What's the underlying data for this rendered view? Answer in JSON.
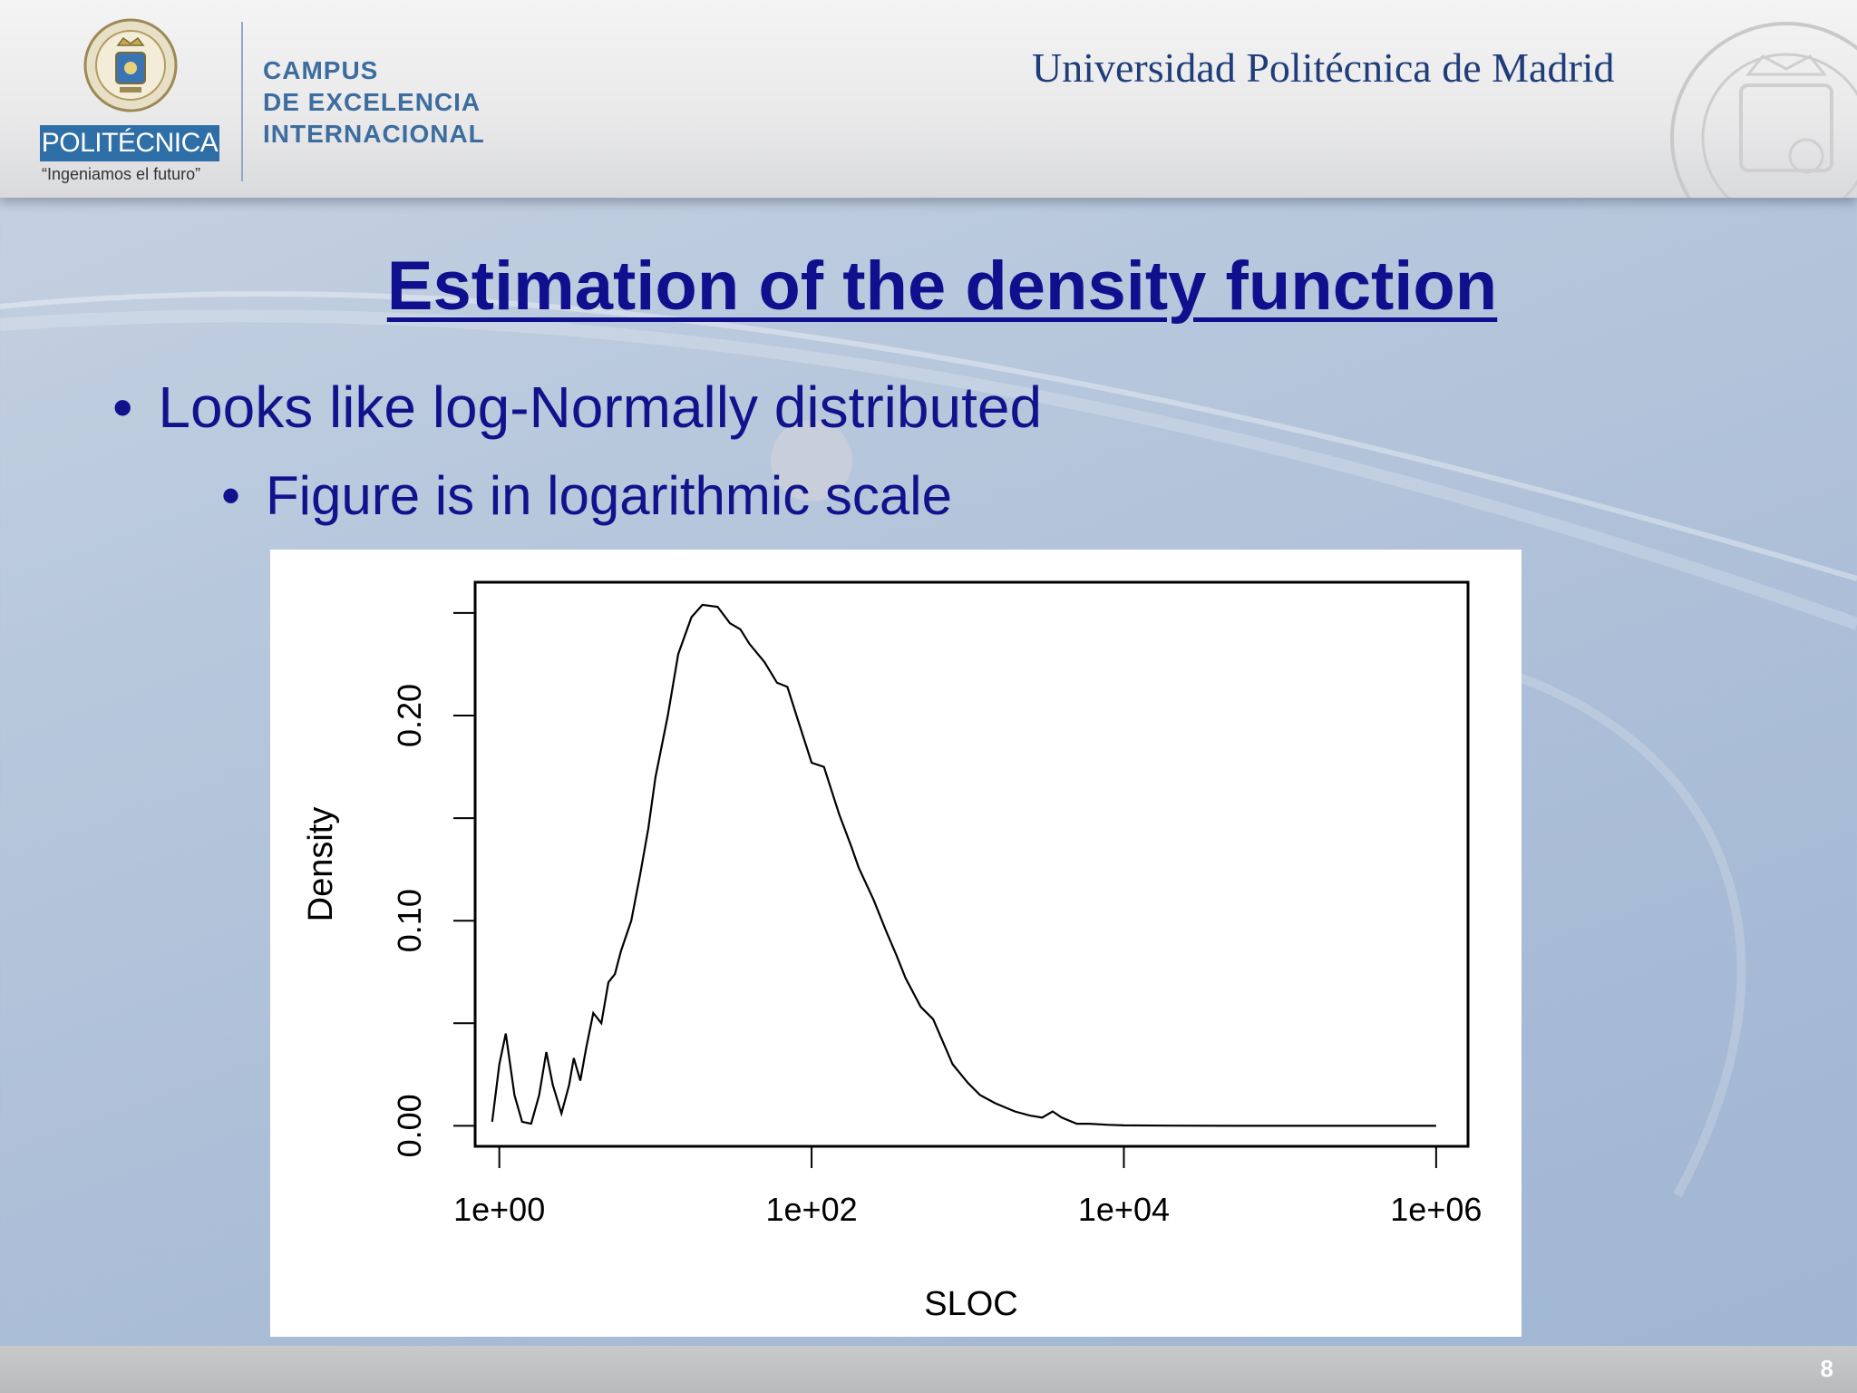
{
  "header": {
    "logo_text": "POLITÉCNICA",
    "logo_tagline": "“Ingeniamos el futuro”",
    "campus_lines": [
      "CAMPUS",
      "DE EXCELENCIA",
      "INTERNACIONAL"
    ],
    "university_name": "Universidad Politécnica de Madrid"
  },
  "slide": {
    "title": "Estimation of the density function",
    "bullet_1": "Looks like log-Normally distributed",
    "bullet_2": "Figure is in logarithmic scale",
    "page_number": "8"
  },
  "colors": {
    "title": "#10108f",
    "bullet": "#12128c",
    "logo_box": "#2f6fa8",
    "campus_text": "#3d6d9f"
  },
  "chart_data": {
    "type": "line",
    "xlabel": "SLOC",
    "ylabel": "Density",
    "x_scale": "log10",
    "xlim": [
      0.7,
      1600000
    ],
    "ylim": [
      -0.01,
      0.265
    ],
    "x_ticks": [
      1,
      100,
      10000,
      1000000
    ],
    "x_tick_labels": [
      "1e+00",
      "1e+02",
      "1e+04",
      "1e+06"
    ],
    "y_ticks": [
      0,
      0.05,
      0.1,
      0.15,
      0.2,
      0.25
    ],
    "y_tick_labels": [
      "0.00",
      "",
      "0.10",
      "",
      "0.20",
      ""
    ],
    "grid": false,
    "legend": "none",
    "series": [
      {
        "x": [
          0.9,
          1.0,
          1.1,
          1.25,
          1.4,
          1.6,
          1.8,
          2.0,
          2.2,
          2.5,
          2.8,
          3.0,
          3.3,
          3.6,
          4.0,
          4.5,
          5.0,
          5.5,
          6.0,
          7.0,
          8.0,
          9.0,
          10,
          12,
          14,
          17,
          20,
          25,
          30,
          35,
          40,
          50,
          60,
          70,
          80,
          100,
          120,
          150,
          180,
          200,
          250,
          300,
          350,
          400,
          500,
          600,
          800,
          1000,
          1200,
          1500,
          2000,
          2500,
          3000,
          3500,
          4000,
          5000,
          6000,
          8000,
          10000,
          20000,
          50000,
          100000,
          1000000
        ],
        "y": [
          0.002,
          0.03,
          0.045,
          0.015,
          0.002,
          0.001,
          0.015,
          0.036,
          0.02,
          0.006,
          0.02,
          0.033,
          0.022,
          0.038,
          0.055,
          0.05,
          0.07,
          0.074,
          0.085,
          0.1,
          0.123,
          0.145,
          0.17,
          0.2,
          0.23,
          0.248,
          0.254,
          0.253,
          0.245,
          0.242,
          0.235,
          0.226,
          0.216,
          0.214,
          0.2,
          0.177,
          0.175,
          0.152,
          0.136,
          0.126,
          0.11,
          0.095,
          0.083,
          0.072,
          0.058,
          0.052,
          0.03,
          0.021,
          0.015,
          0.011,
          0.007,
          0.005,
          0.004,
          0.007,
          0.004,
          0.001,
          0.001,
          0.0005,
          0.0002,
          0.0001,
          0.0,
          0.0,
          0.0
        ]
      }
    ]
  }
}
